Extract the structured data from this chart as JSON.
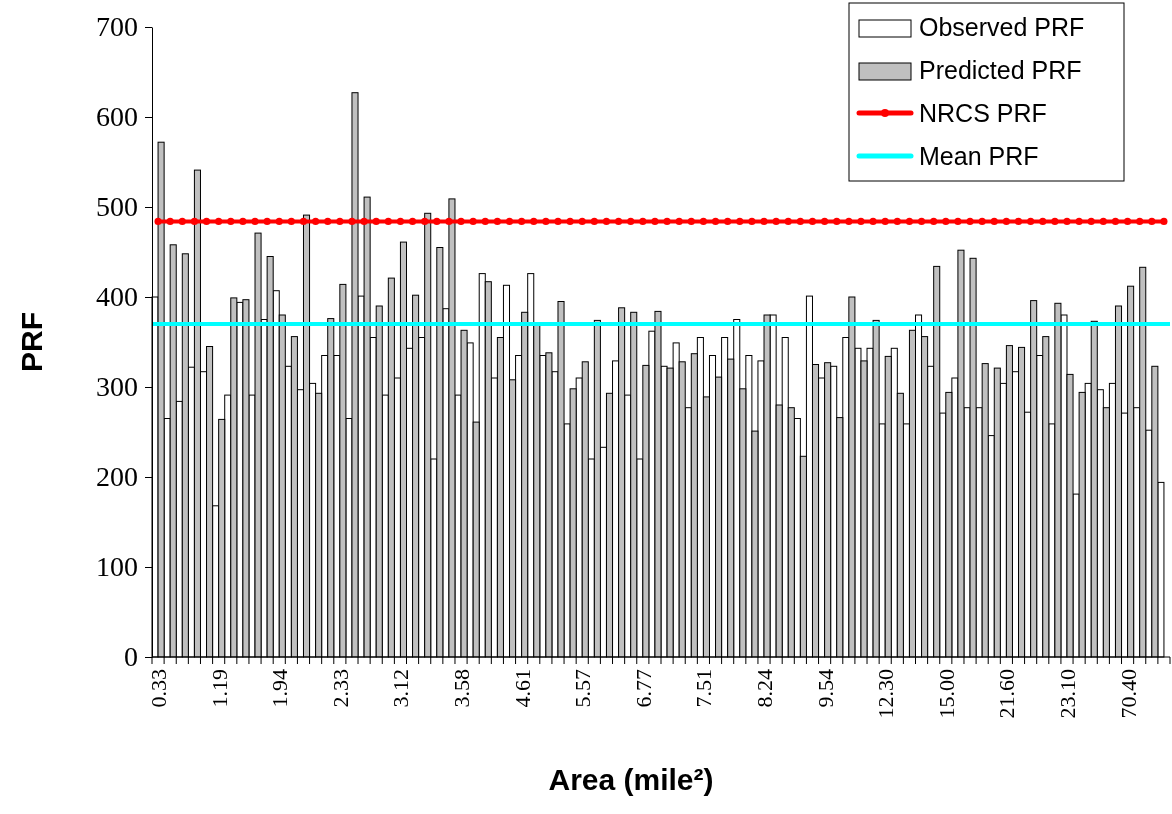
{
  "chart_data": {
    "type": "bar",
    "xlabel": "Area (mile²)",
    "ylabel": "PRF",
    "categories": [
      "0.33",
      null,
      null,
      null,
      null,
      "1.19",
      null,
      null,
      null,
      null,
      "1.94",
      null,
      null,
      null,
      null,
      "2.33",
      null,
      null,
      null,
      null,
      "3.12",
      null,
      null,
      null,
      null,
      "3.58",
      null,
      null,
      null,
      null,
      "4.61",
      null,
      null,
      null,
      null,
      "5.57",
      null,
      null,
      null,
      null,
      "6.77",
      null,
      null,
      null,
      null,
      "7.51",
      null,
      null,
      null,
      null,
      "8.24",
      null,
      null,
      null,
      null,
      "9.54",
      null,
      null,
      null,
      null,
      "12.30",
      null,
      null,
      null,
      null,
      "15.00",
      null,
      null,
      null,
      null,
      "21.60",
      null,
      null,
      null,
      null,
      "23.10",
      null,
      null,
      null,
      null,
      "70.40",
      null,
      null,
      null
    ],
    "series": [
      {
        "name": "Observed PRF",
        "color": "#ffffff",
        "values": [
          400,
          265,
          284,
          322,
          317,
          168,
          291,
          394,
          291,
          375,
          407,
          323,
          297,
          304,
          335,
          335,
          265,
          401,
          355,
          291,
          310,
          343,
          355,
          220,
          387,
          291,
          349,
          426,
          310,
          413,
          335,
          426,
          335,
          317,
          259,
          310,
          220,
          233,
          329,
          291,
          220,
          362,
          323,
          349,
          277,
          355,
          335,
          355,
          375,
          335,
          329,
          380,
          355,
          265,
          401,
          310,
          323,
          355,
          343,
          343,
          259,
          343,
          259,
          380,
          323,
          271,
          310,
          277,
          277,
          246,
          304,
          317,
          272,
          335,
          259,
          380,
          181,
          304,
          297,
          304,
          271,
          277,
          252,
          194
        ]
      },
      {
        "name": "Predicted PRF",
        "color": "#c0c0c0",
        "values": [
          572,
          458,
          448,
          541,
          345,
          264,
          399,
          397,
          471,
          445,
          380,
          356,
          491,
          293,
          376,
          414,
          627,
          511,
          390,
          421,
          461,
          402,
          493,
          455,
          509,
          363,
          261,
          417,
          355,
          308,
          383,
          369,
          338,
          395,
          298,
          328,
          374,
          293,
          388,
          383,
          324,
          384,
          321,
          328,
          337,
          289,
          311,
          331,
          298,
          251,
          380,
          280,
          277,
          223,
          325,
          327,
          266,
          400,
          329,
          374,
          334,
          293,
          363,
          356,
          434,
          294,
          452,
          443,
          326,
          321,
          346,
          344,
          396,
          356,
          393,
          314,
          294,
          373,
          277,
          390,
          412,
          433,
          323,
          null
        ]
      },
      {
        "name": "NRCS PRF",
        "type": "line",
        "color": "#ff0000",
        "marker": "circle",
        "values": [
          484,
          484,
          484,
          484,
          484,
          484,
          484,
          484,
          484,
          484,
          484,
          484,
          484,
          484,
          484,
          484,
          484,
          484,
          484,
          484,
          484,
          484,
          484,
          484,
          484,
          484,
          484,
          484,
          484,
          484,
          484,
          484,
          484,
          484,
          484,
          484,
          484,
          484,
          484,
          484,
          484,
          484,
          484,
          484,
          484,
          484,
          484,
          484,
          484,
          484,
          484,
          484,
          484,
          484,
          484,
          484,
          484,
          484,
          484,
          484,
          484,
          484,
          484,
          484,
          484,
          484,
          484,
          484,
          484,
          484,
          484,
          484,
          484,
          484,
          484,
          484,
          484,
          484,
          484,
          484,
          484,
          484,
          484,
          484
        ]
      }
    ],
    "ref_lines": [
      {
        "axis": "y",
        "value": 370,
        "label": "Mean PRF",
        "color": "#00ffff"
      }
    ],
    "ylim": [
      0,
      700
    ],
    "yticks": [
      0,
      100,
      200,
      300,
      400,
      500,
      600,
      700
    ],
    "legend": "top right"
  }
}
